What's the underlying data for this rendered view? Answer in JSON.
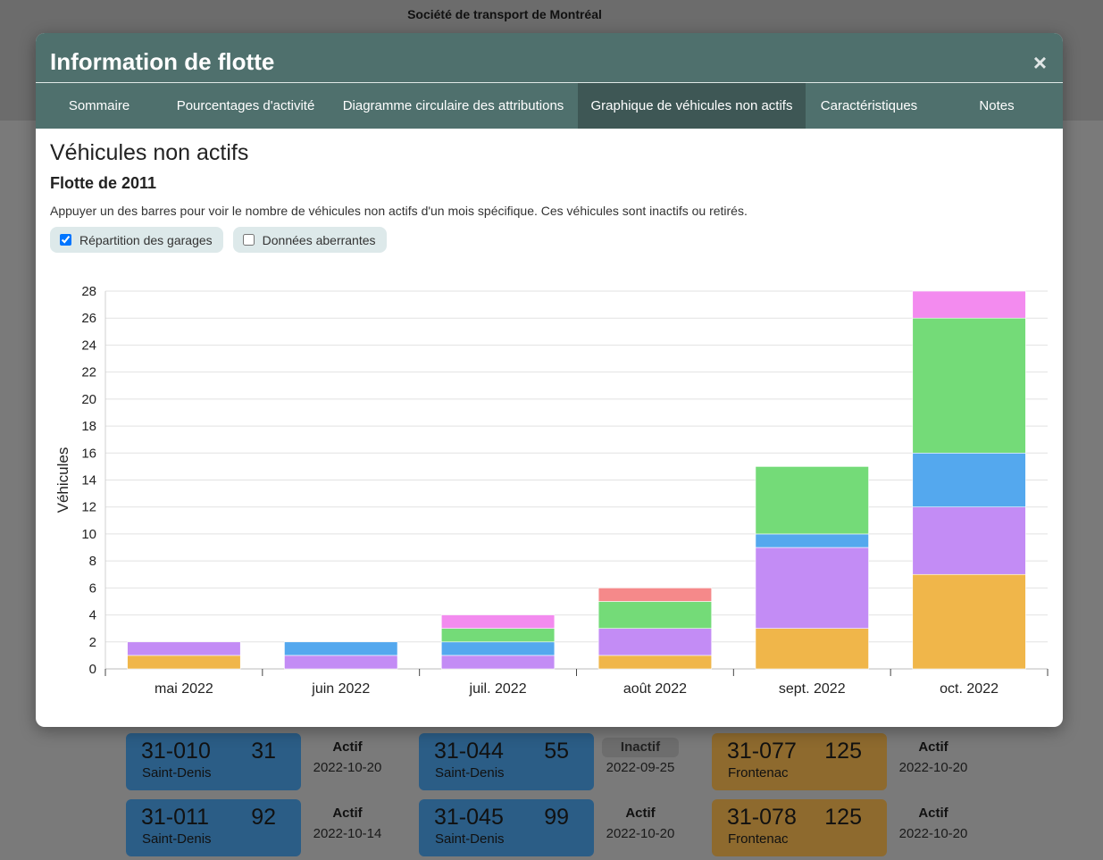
{
  "background": {
    "org_title": "Société de transport de Montréal",
    "rows": [
      [
        {
          "bus": "31-010",
          "count": "31",
          "garage": "Saint-Denis",
          "color": "blue",
          "status": "Actif",
          "date": "2022-10-20"
        },
        {
          "bus": "31-044",
          "count": "55",
          "garage": "Saint-Denis",
          "color": "blue",
          "status": "Inactif",
          "date": "2022-09-25"
        },
        {
          "bus": "31-077",
          "count": "125",
          "garage": "Frontenac",
          "color": "orange",
          "status": "Actif",
          "date": "2022-10-20"
        }
      ],
      [
        {
          "bus": "31-011",
          "count": "92",
          "garage": "Saint-Denis",
          "color": "blue",
          "status": "Actif",
          "date": "2022-10-14"
        },
        {
          "bus": "31-045",
          "count": "99",
          "garage": "Saint-Denis",
          "color": "blue",
          "status": "Actif",
          "date": "2022-10-20"
        },
        {
          "bus": "31-078",
          "count": "125",
          "garage": "Frontenac",
          "color": "orange",
          "status": "Actif",
          "date": "2022-10-20"
        }
      ]
    ]
  },
  "modal": {
    "title": "Information de flotte",
    "close_symbol": "×",
    "tabs": [
      {
        "label": "Sommaire",
        "active": false
      },
      {
        "label": "Pourcentages d'activité",
        "active": false
      },
      {
        "label": "Diagramme circulaire des attributions",
        "active": false
      },
      {
        "label": "Graphique de véhicules non actifs",
        "active": true
      },
      {
        "label": "Caractéristiques",
        "active": false
      },
      {
        "label": "Notes",
        "active": false
      }
    ],
    "heading": "Véhicules non actifs",
    "subheading": "Flotte de 2011",
    "description": "Appuyer un des barres pour voir le nombre de véhicules non actifs d'un mois spécifique. Ces véhicules sont inactifs ou retirés.",
    "options": [
      {
        "label": "Répartition des garages",
        "checked": true
      },
      {
        "label": "Données aberrantes",
        "checked": false
      }
    ]
  },
  "chart_data": {
    "type": "bar",
    "stacked": true,
    "ylabel": "Véhicules",
    "ylim": [
      0,
      28
    ],
    "yticks": [
      0,
      2,
      4,
      6,
      8,
      10,
      12,
      14,
      16,
      18,
      20,
      22,
      24,
      26,
      28
    ],
    "categories": [
      "mai 2022",
      "juin 2022",
      "juil. 2022",
      "août 2022",
      "sept. 2022",
      "oct. 2022"
    ],
    "grid": true,
    "series": [
      {
        "color": "#f0b64a",
        "values": [
          1,
          0,
          0,
          1,
          3,
          7
        ]
      },
      {
        "color": "#c38cf5",
        "values": [
          1,
          1,
          1,
          2,
          6,
          5
        ]
      },
      {
        "color": "#54a8ee",
        "values": [
          0,
          1,
          1,
          0,
          1,
          4
        ]
      },
      {
        "color": "#74db78",
        "values": [
          0,
          0,
          1,
          2,
          5,
          10
        ]
      },
      {
        "color": "#f5898a",
        "values": [
          0,
          0,
          0,
          1,
          0,
          0
        ]
      },
      {
        "color": "#f38bef",
        "values": [
          0,
          0,
          1,
          0,
          0,
          2
        ]
      }
    ]
  }
}
